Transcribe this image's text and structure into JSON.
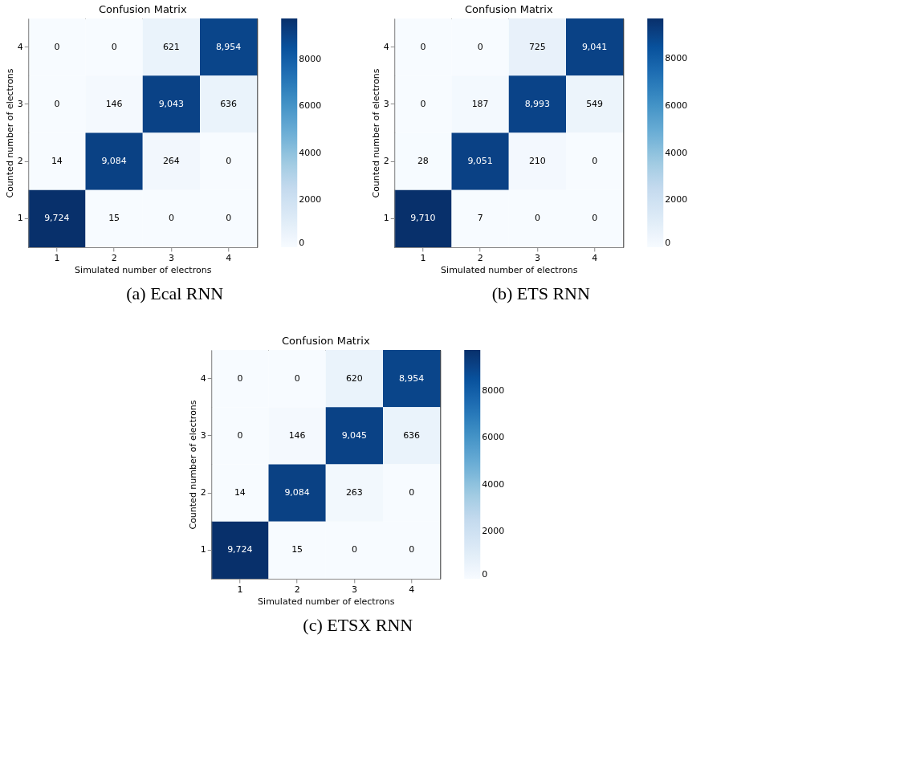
{
  "chart_data": [
    {
      "type": "heatmap",
      "title": "Confusion Matrix",
      "xlabel": "Simulated number of electrons",
      "ylabel": "Counted number of electrons",
      "categories": [
        "1",
        "2",
        "3",
        "4"
      ],
      "y_categories": [
        "4",
        "3",
        "2",
        "1"
      ],
      "cells": [
        [
          0,
          0,
          621,
          8954
        ],
        [
          0,
          146,
          9043,
          636
        ],
        [
          14,
          9084,
          264,
          0
        ],
        [
          9724,
          15,
          0,
          0
        ]
      ],
      "cell_labels": [
        [
          "0",
          "0",
          "621",
          "8,954"
        ],
        [
          "0",
          "146",
          "9,043",
          "636"
        ],
        [
          "14",
          "9,084",
          "264",
          "0"
        ],
        [
          "9,724",
          "15",
          "0",
          "0"
        ]
      ],
      "clim": [
        0,
        9724
      ],
      "cticks": [
        0,
        2000,
        4000,
        6000,
        8000
      ],
      "annotations": [
        "(a) Ecal RNN"
      ]
    },
    {
      "type": "heatmap",
      "title": "Confusion Matrix",
      "xlabel": "Simulated number of electrons",
      "ylabel": "Counted number of electrons",
      "categories": [
        "1",
        "2",
        "3",
        "4"
      ],
      "y_categories": [
        "4",
        "3",
        "2",
        "1"
      ],
      "cells": [
        [
          0,
          0,
          725,
          9041
        ],
        [
          0,
          187,
          8993,
          549
        ],
        [
          28,
          9051,
          210,
          0
        ],
        [
          9710,
          7,
          0,
          0
        ]
      ],
      "cell_labels": [
        [
          "0",
          "0",
          "725",
          "9,041"
        ],
        [
          "0",
          "187",
          "8,993",
          "549"
        ],
        [
          "28",
          "9,051",
          "210",
          "0"
        ],
        [
          "9,710",
          "7",
          "0",
          "0"
        ]
      ],
      "clim": [
        0,
        9710
      ],
      "cticks": [
        0,
        2000,
        4000,
        6000,
        8000
      ],
      "annotations": [
        "(b) ETS RNN"
      ]
    },
    {
      "type": "heatmap",
      "title": "Confusion Matrix",
      "xlabel": "Simulated number of electrons",
      "ylabel": "Counted number of electrons",
      "categories": [
        "1",
        "2",
        "3",
        "4"
      ],
      "y_categories": [
        "4",
        "3",
        "2",
        "1"
      ],
      "cells": [
        [
          0,
          0,
          620,
          8954
        ],
        [
          0,
          146,
          9045,
          636
        ],
        [
          14,
          9084,
          263,
          0
        ],
        [
          9724,
          15,
          0,
          0
        ]
      ],
      "cell_labels": [
        [
          "0",
          "0",
          "620",
          "8,954"
        ],
        [
          "0",
          "146",
          "9,045",
          "636"
        ],
        [
          "14",
          "9,084",
          "263",
          "0"
        ],
        [
          "9,724",
          "15",
          "0",
          "0"
        ]
      ],
      "clim": [
        0,
        9724
      ],
      "cticks": [
        0,
        2000,
        4000,
        6000,
        8000
      ],
      "annotations": [
        "(c) ETSX RNN"
      ]
    }
  ]
}
